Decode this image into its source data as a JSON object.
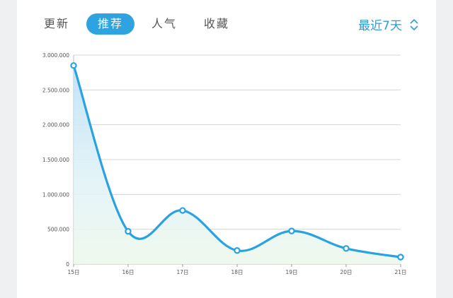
{
  "tabs": [
    {
      "label": "更新",
      "active": false
    },
    {
      "label": "推荐",
      "active": true
    },
    {
      "label": "人气",
      "active": false
    },
    {
      "label": "收藏",
      "active": false
    }
  ],
  "range": {
    "label": "最近7天",
    "icon": "chevron-up-down-icon"
  },
  "colors": {
    "accent": "#2ea3df",
    "line": "#29a3e0"
  },
  "chart_data": {
    "type": "line",
    "categories": [
      "15日",
      "16日",
      "17日",
      "18日",
      "19日",
      "20日",
      "21日"
    ],
    "series": [
      {
        "values": [
          2850000,
          470000,
          770000,
          195000,
          475000,
          225000,
          100000
        ]
      }
    ],
    "ylim": [
      0,
      3000000
    ],
    "yticks": [
      "0",
      "500.000",
      "1.000.000",
      "1.500.000",
      "2.000.000",
      "2.500.000",
      "3.000.000"
    ],
    "grid": true,
    "smooth": true,
    "area_fill": true
  }
}
